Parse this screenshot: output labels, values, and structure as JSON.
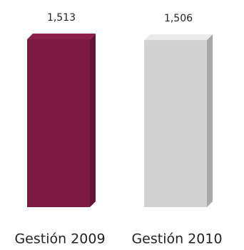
{
  "chart_data": {
    "type": "bar3d",
    "categories": [
      "Gestión 2009",
      "Gestión 2010"
    ],
    "values": [
      1513,
      1506
    ],
    "value_labels": [
      "1,513",
      "1,506"
    ],
    "colors": [
      "#7d1a42",
      "#d2d2d2"
    ]
  }
}
